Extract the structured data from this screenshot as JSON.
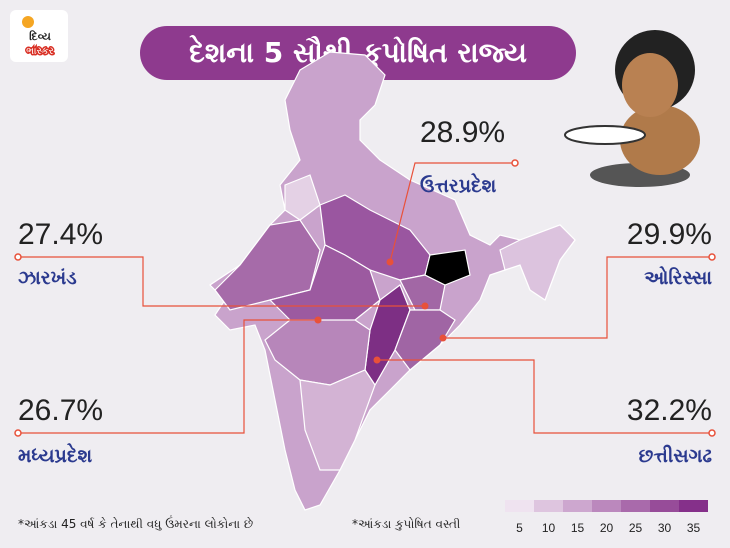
{
  "logo": {
    "line1": "દિવ્ય",
    "line2": "ભાસ્કર"
  },
  "title": "દેશના 5 સૌથી કુપોષિત રાજ્ય",
  "callouts": [
    {
      "value": "28.9%",
      "name": "ઉત્તરપ્રદેશ"
    },
    {
      "value": "27.4%",
      "name": "ઝારખંડ"
    },
    {
      "value": "29.9%",
      "name": "ઓરિસ્સા"
    },
    {
      "value": "26.7%",
      "name": "મધ્યપ્રદેશ"
    },
    {
      "value": "32.2%",
      "name": "છત્તીસગઢ"
    }
  ],
  "legend": {
    "ticks": [
      5,
      10,
      15,
      20,
      25,
      30,
      35
    ],
    "colors": [
      "#efe3f0",
      "#dec5df",
      "#cda7cf",
      "#bb88bd",
      "#a96aab",
      "#974c99",
      "#85308a"
    ]
  },
  "footnotes": [
    "*આંકડા 45 વર્ષ કે તેનાથી વધુ ઉંમરના લોકોના છે",
    "*આંકડા કુપોષિત વસ્તી"
  ]
}
